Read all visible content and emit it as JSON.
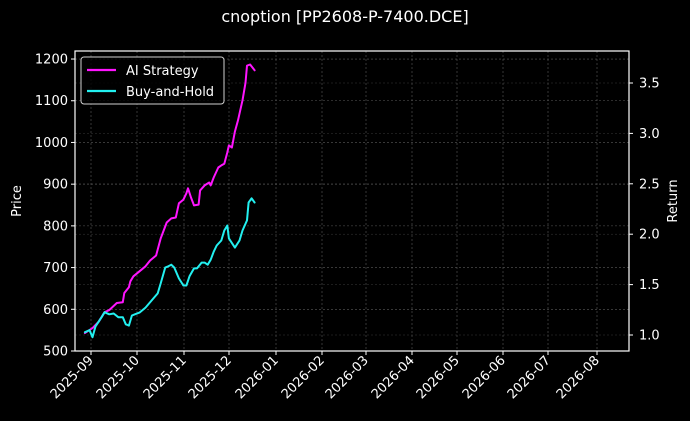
{
  "title": "cnoption [PP2608-P-7400.DCE]",
  "colors": {
    "background": "#000000",
    "ai_strategy": "#ff14ff",
    "buy_and_hold": "#22f0f0",
    "grid": "#5a5a5a",
    "axis": "#ffffff"
  },
  "legend": {
    "items": [
      {
        "label": "AI Strategy",
        "color": "#ff14ff"
      },
      {
        "label": "Buy-and-Hold",
        "color": "#22f0f0"
      }
    ]
  },
  "axes": {
    "left_label": "Price",
    "right_label": "Return",
    "left_ticks": [
      "500",
      "600",
      "700",
      "800",
      "900",
      "1000",
      "1100",
      "1200"
    ],
    "right_ticks": [
      "1.0",
      "1.5",
      "2.0",
      "2.5",
      "3.0",
      "3.5"
    ],
    "x_ticks": [
      "2025-09",
      "2025-10",
      "2025-11",
      "2025-12",
      "2026-01",
      "2026-02",
      "2026-03",
      "2026-04",
      "2026-05",
      "2026-06",
      "2026-07",
      "2026-08"
    ]
  },
  "chart_data": {
    "type": "line",
    "title": "cnoption [PP2608-P-7400.DCE]",
    "xlabel": "",
    "ylabel": "Price",
    "ylabel_right": "Return",
    "ylim": [
      500,
      1220
    ],
    "ylim_right": [
      0.83,
      3.8
    ],
    "xlim": [
      "2025-08-28",
      "2026-08-31"
    ],
    "grid": true,
    "legend_position": "upper left",
    "x_ticks": [
      "2025-09",
      "2025-10",
      "2025-11",
      "2025-12",
      "2026-01",
      "2026-02",
      "2026-03",
      "2026-04",
      "2026-05",
      "2026-06",
      "2026-07",
      "2026-08"
    ],
    "series": [
      {
        "name": "AI Strategy",
        "color": "#ff14ff",
        "points": [
          {
            "x": "2025-08-28",
            "y": 543
          },
          {
            "x": "2025-09-02",
            "y": 555
          },
          {
            "x": "2025-09-06",
            "y": 570
          },
          {
            "x": "2025-09-10",
            "y": 593
          },
          {
            "x": "2025-09-13",
            "y": 598
          },
          {
            "x": "2025-09-18",
            "y": 615
          },
          {
            "x": "2025-09-22",
            "y": 617
          },
          {
            "x": "2025-09-23",
            "y": 639
          },
          {
            "x": "2025-09-26",
            "y": 653
          },
          {
            "x": "2025-09-27",
            "y": 667
          },
          {
            "x": "2025-09-29",
            "y": 679
          },
          {
            "x": "2025-10-03",
            "y": 691
          },
          {
            "x": "2025-10-07",
            "y": 703
          },
          {
            "x": "2025-10-10",
            "y": 717
          },
          {
            "x": "2025-10-14",
            "y": 729
          },
          {
            "x": "2025-10-17",
            "y": 770
          },
          {
            "x": "2025-10-21",
            "y": 808
          },
          {
            "x": "2025-10-24",
            "y": 818
          },
          {
            "x": "2025-10-27",
            "y": 820
          },
          {
            "x": "2025-10-29",
            "y": 854
          },
          {
            "x": "2025-11-01",
            "y": 863
          },
          {
            "x": "2025-11-03",
            "y": 878
          },
          {
            "x": "2025-11-04",
            "y": 890
          },
          {
            "x": "2025-11-06",
            "y": 868
          },
          {
            "x": "2025-11-08",
            "y": 849
          },
          {
            "x": "2025-11-11",
            "y": 851
          },
          {
            "x": "2025-11-12",
            "y": 885
          },
          {
            "x": "2025-11-15",
            "y": 897
          },
          {
            "x": "2025-11-18",
            "y": 904
          },
          {
            "x": "2025-11-19",
            "y": 897
          },
          {
            "x": "2025-11-21",
            "y": 916
          },
          {
            "x": "2025-11-24",
            "y": 940
          },
          {
            "x": "2025-11-26",
            "y": 945
          },
          {
            "x": "2025-11-28",
            "y": 949
          },
          {
            "x": "2025-11-30",
            "y": 976
          },
          {
            "x": "2025-12-01",
            "y": 993
          },
          {
            "x": "2025-12-03",
            "y": 988
          },
          {
            "x": "2025-12-05",
            "y": 1026
          },
          {
            "x": "2025-12-07",
            "y": 1053
          },
          {
            "x": "2025-12-10",
            "y": 1101
          },
          {
            "x": "2025-12-12",
            "y": 1143
          },
          {
            "x": "2025-12-13",
            "y": 1184
          },
          {
            "x": "2025-12-15",
            "y": 1187
          },
          {
            "x": "2025-12-18",
            "y": 1173
          }
        ]
      },
      {
        "name": "Buy-and-Hold",
        "color": "#22f0f0",
        "points": [
          {
            "x": "2025-08-28",
            "y": 545
          },
          {
            "x": "2025-08-31",
            "y": 550
          },
          {
            "x": "2025-09-02",
            "y": 533
          },
          {
            "x": "2025-09-04",
            "y": 559
          },
          {
            "x": "2025-09-08",
            "y": 581
          },
          {
            "x": "2025-09-10",
            "y": 593
          },
          {
            "x": "2025-09-13",
            "y": 588
          },
          {
            "x": "2025-09-16",
            "y": 590
          },
          {
            "x": "2025-09-19",
            "y": 581
          },
          {
            "x": "2025-09-22",
            "y": 581
          },
          {
            "x": "2025-09-24",
            "y": 564
          },
          {
            "x": "2025-09-26",
            "y": 561
          },
          {
            "x": "2025-09-28",
            "y": 585
          },
          {
            "x": "2025-09-30",
            "y": 588
          },
          {
            "x": "2025-10-03",
            "y": 592
          },
          {
            "x": "2025-10-07",
            "y": 604
          },
          {
            "x": "2025-10-11",
            "y": 621
          },
          {
            "x": "2025-10-15",
            "y": 638
          },
          {
            "x": "2025-10-17",
            "y": 662
          },
          {
            "x": "2025-10-20",
            "y": 700
          },
          {
            "x": "2025-10-22",
            "y": 703
          },
          {
            "x": "2025-10-24",
            "y": 707
          },
          {
            "x": "2025-10-26",
            "y": 700
          },
          {
            "x": "2025-10-29",
            "y": 674
          },
          {
            "x": "2025-11-01",
            "y": 657
          },
          {
            "x": "2025-11-03",
            "y": 657
          },
          {
            "x": "2025-11-05",
            "y": 679
          },
          {
            "x": "2025-11-08",
            "y": 698
          },
          {
            "x": "2025-11-10",
            "y": 698
          },
          {
            "x": "2025-11-13",
            "y": 712
          },
          {
            "x": "2025-11-15",
            "y": 712
          },
          {
            "x": "2025-11-17",
            "y": 707
          },
          {
            "x": "2025-11-19",
            "y": 719
          },
          {
            "x": "2025-11-21",
            "y": 738
          },
          {
            "x": "2025-11-23",
            "y": 753
          },
          {
            "x": "2025-11-26",
            "y": 765
          },
          {
            "x": "2025-11-28",
            "y": 789
          },
          {
            "x": "2025-11-30",
            "y": 801
          },
          {
            "x": "2025-12-01",
            "y": 770
          },
          {
            "x": "2025-12-05",
            "y": 748
          },
          {
            "x": "2025-12-08",
            "y": 765
          },
          {
            "x": "2025-12-10",
            "y": 789
          },
          {
            "x": "2025-12-13",
            "y": 813
          },
          {
            "x": "2025-12-14",
            "y": 856
          },
          {
            "x": "2025-12-16",
            "y": 866
          },
          {
            "x": "2025-12-18",
            "y": 856
          }
        ]
      }
    ]
  }
}
